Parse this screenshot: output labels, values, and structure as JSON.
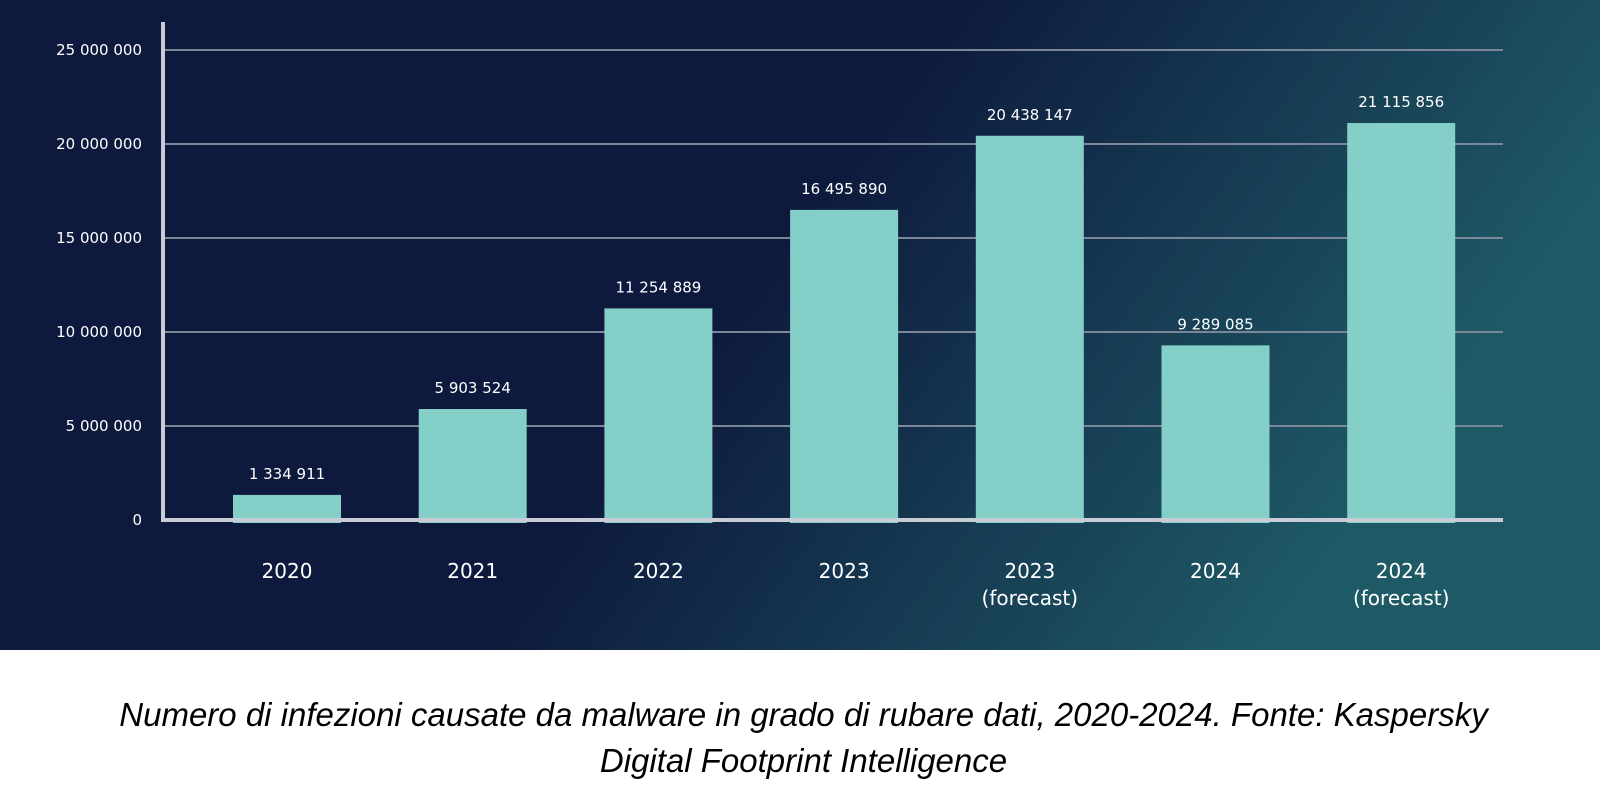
{
  "colors": {
    "background_left": "#0e1a3d",
    "background_right": "#1e5a66",
    "bar": "#84cfc7",
    "grid": "#7c8699",
    "axis": "#c9ccd6",
    "text": "#ffffff"
  },
  "chart_data": {
    "type": "bar",
    "categories": [
      [
        "2020"
      ],
      [
        "2021"
      ],
      [
        "2022"
      ],
      [
        "2023"
      ],
      [
        "2023",
        "(forecast)"
      ],
      [
        "2024"
      ],
      [
        "2024",
        "(forecast)"
      ]
    ],
    "values": [
      1334911,
      5903524,
      11254889,
      16495890,
      20438147,
      9289085,
      21115856
    ],
    "value_labels": [
      "1 334 911",
      "5 903 524",
      "11 254 889",
      "16 495 890",
      "20 438 147",
      "9 289 085",
      "21 115 856"
    ],
    "yticks": [
      0,
      5000000,
      10000000,
      15000000,
      20000000,
      25000000
    ],
    "ytick_labels": [
      "0",
      "5 000 000",
      "10 000 000",
      "15 000 000",
      "20 000 000",
      "25 000 000"
    ],
    "ylim": [
      0,
      25000000
    ],
    "grid": true,
    "legend": "none",
    "title": "",
    "xlabel": "",
    "ylabel": ""
  },
  "caption": {
    "line1": "Numero di infezioni causate da malware in grado di rubare dati, 2020-2024. Fonte: Kaspersky",
    "line2": "Digital Footprint Intelligence"
  }
}
